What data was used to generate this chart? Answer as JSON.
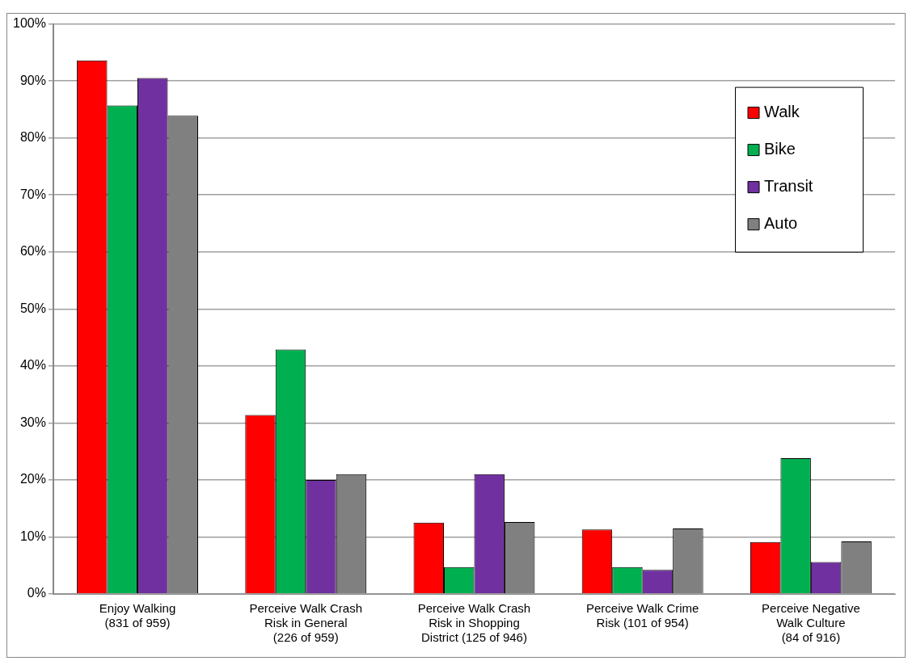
{
  "chart_data": {
    "type": "bar",
    "categories": [
      "Enjoy Walking\n(831 of 959)",
      "Perceive Walk Crash\nRisk in General\n(226 of 959)",
      "Perceive Walk Crash\nRisk in Shopping\nDistrict (125 of 946)",
      "Perceive Walk Crime\nRisk (101 of 954)",
      "Perceive Negative\nWalk Culture\n(84 of 916)"
    ],
    "series": [
      {
        "name": "Walk",
        "color": "#ff0000",
        "values": [
          93.6,
          31.4,
          12.5,
          11.3,
          9.1
        ]
      },
      {
        "name": "Bike",
        "color": "#00b050",
        "values": [
          85.7,
          42.9,
          4.7,
          4.7,
          23.8
        ]
      },
      {
        "name": "Transit",
        "color": "#7030a0",
        "values": [
          90.5,
          20.0,
          21.0,
          4.2,
          5.6
        ]
      },
      {
        "name": "Auto",
        "color": "#808080",
        "values": [
          83.9,
          21.0,
          12.6,
          11.5,
          9.2
        ]
      }
    ],
    "ylim": [
      0,
      100
    ],
    "yticks": [
      {
        "value": 0,
        "label": "0%"
      },
      {
        "value": 10,
        "label": "10%"
      },
      {
        "value": 20,
        "label": "20%"
      },
      {
        "value": 30,
        "label": "30%"
      },
      {
        "value": 40,
        "label": "40%"
      },
      {
        "value": 50,
        "label": "50%"
      },
      {
        "value": 60,
        "label": "60%"
      },
      {
        "value": 70,
        "label": "70%"
      },
      {
        "value": 80,
        "label": "80%"
      },
      {
        "value": 90,
        "label": "90%"
      },
      {
        "value": 100,
        "label": "100%"
      }
    ],
    "grid": "y",
    "legend": "top right"
  }
}
